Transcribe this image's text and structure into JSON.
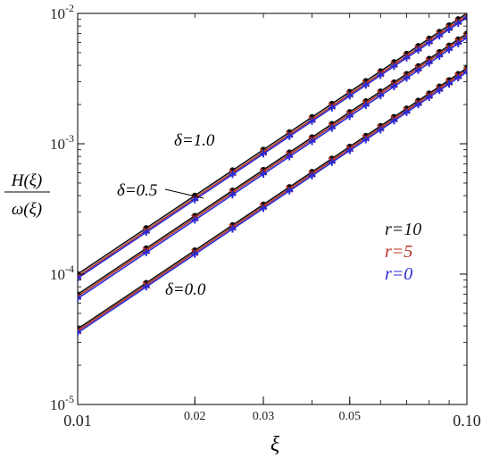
{
  "chart_data": {
    "type": "line",
    "xscale": "log",
    "yscale": "log",
    "xlim": [
      0.01,
      0.1
    ],
    "ylim": [
      1e-05,
      0.01
    ],
    "xlabel": "ξ",
    "ylabel_top": "H(ξ)",
    "ylabel_bottom": "ω(ξ)",
    "x_ticks": [
      "0.01",
      "0.02",
      "0.03",
      "0.05",
      "0.10"
    ],
    "x_tick_values": [
      0.01,
      0.02,
      0.03,
      0.05,
      0.1
    ],
    "y_ticks": [
      {
        "base": "10",
        "exp": "-5",
        "value": 1e-05
      },
      {
        "base": "10",
        "exp": "-4",
        "value": 0.0001
      },
      {
        "base": "10",
        "exp": "-3",
        "value": 0.001
      },
      {
        "base": "10",
        "exp": "-2",
        "value": 0.01
      }
    ],
    "marker_x": [
      0.01,
      0.015,
      0.02,
      0.025,
      0.03,
      0.035,
      0.04,
      0.045,
      0.05,
      0.055,
      0.06,
      0.065,
      0.07,
      0.075,
      0.08,
      0.085,
      0.09,
      0.095,
      0.1
    ],
    "fit_exponent": 2,
    "groups": [
      {
        "label": "δ=1.0",
        "coef": {
          "r10": 1.0,
          "r5": 0.96,
          "r0": 0.93
        }
      },
      {
        "label": "δ=0.5",
        "coef": {
          "r10": 0.7,
          "r5": 0.675,
          "r0": 0.65
        }
      },
      {
        "label": "δ=0.0",
        "coef": {
          "r10": 0.38,
          "r5": 0.367,
          "r0": 0.355
        }
      }
    ],
    "series": [
      {
        "name": "r=10",
        "key": "r10",
        "color": "#111111",
        "marker": "circle"
      },
      {
        "name": "r=5",
        "key": "r5",
        "color": "#b83222",
        "marker": "x"
      },
      {
        "name": "r=0",
        "key": "r0",
        "color": "#2a2ad6",
        "marker": "plus"
      }
    ],
    "legend_placement": "center-right",
    "grid": false
  }
}
